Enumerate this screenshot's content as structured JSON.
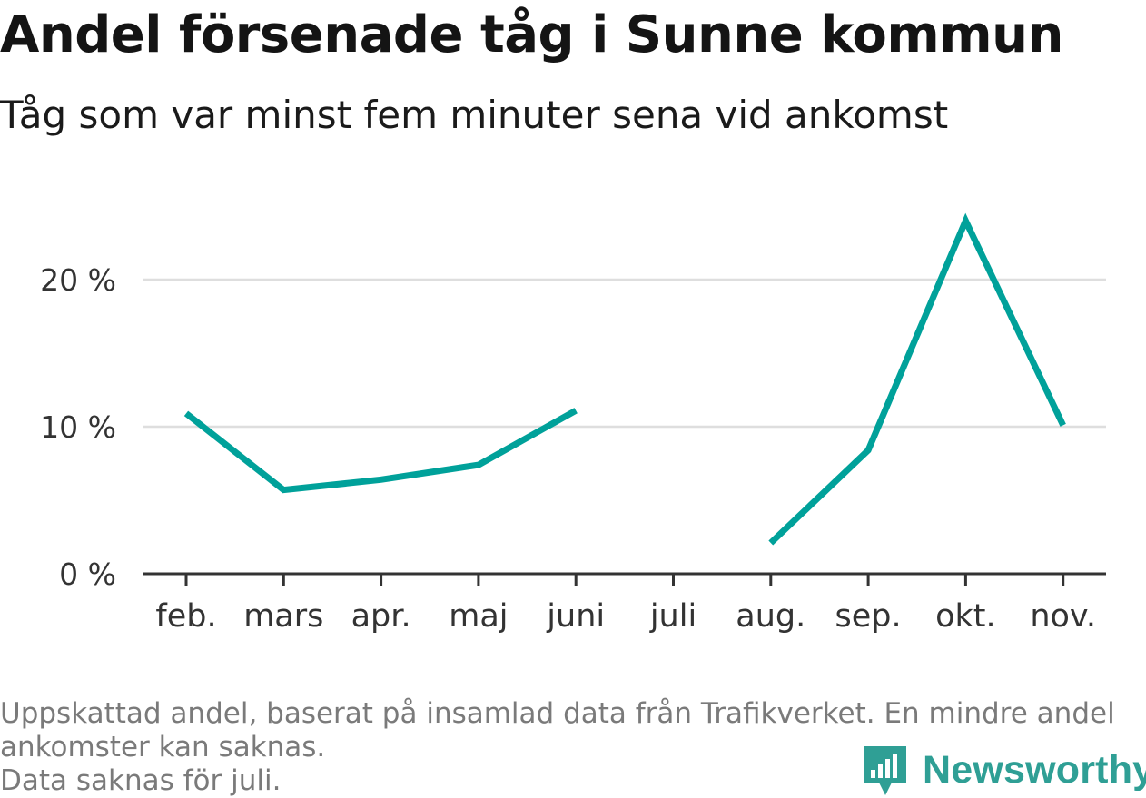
{
  "header": {
    "title": "Andel försenade tåg i Sunne kommun",
    "subtitle": "Tåg som var minst fem minuter sena vid ankomst"
  },
  "chart_data": {
    "type": "line",
    "title": "Andel försenade tåg i Sunne kommun",
    "subtitle": "Tåg som var minst fem minuter sena vid ankomst",
    "categories": [
      "feb.",
      "mars",
      "apr.",
      "maj",
      "juni",
      "juli",
      "aug.",
      "sep.",
      "okt.",
      "nov."
    ],
    "series": [
      {
        "name": "Andel försenade tåg",
        "values": [
          10.9,
          5.7,
          6.4,
          7.4,
          11.1,
          null,
          2.1,
          8.4,
          24.0,
          10.1
        ]
      }
    ],
    "ylim": [
      0,
      25
    ],
    "yticks": [
      0,
      10,
      20
    ],
    "ytick_labels": [
      "0 %",
      "10 %",
      "20 %"
    ],
    "xlabel": "",
    "ylabel": "",
    "grid": true,
    "line_color": "#00a19a"
  },
  "footer": {
    "note_line1": "Uppskattad andel, baserat på insamlad data från Trafikverket. En mindre andel",
    "note_line2": "ankomster kan saknas.",
    "note_line3": "Data saknas för juli.",
    "brand": "Newsworthy",
    "brand_icon": "newsworthy-logo-icon",
    "brand_color": "#2f9f95"
  }
}
